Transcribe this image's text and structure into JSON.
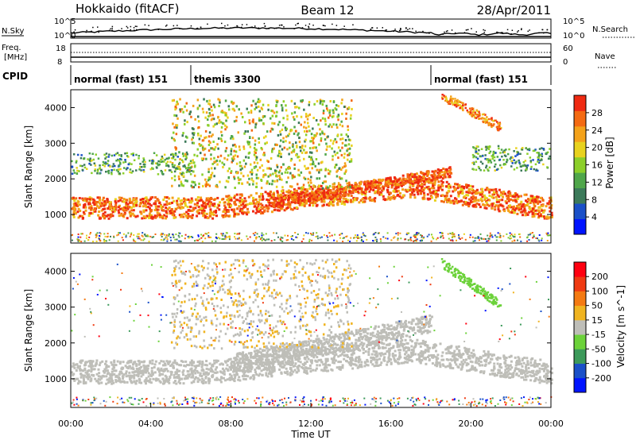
{
  "header": {
    "station": "Hokkaido (fitACF)",
    "beam": "Beam 12",
    "date": "28/Apr/2011"
  },
  "top_panel": {
    "nsky_label": "N.Sky",
    "nsky_ticks": [
      "10^5",
      "10^0"
    ],
    "nsearch_label": "N.Search",
    "nsearch_ticks": [
      "10^5",
      "10^0"
    ],
    "freq_label_1": "Freq.",
    "freq_label_2": "[MHz]",
    "freq_ticks": [
      "18",
      "8"
    ],
    "nave_label": "Nave",
    "nave_ticks": [
      "60",
      "0"
    ],
    "cpid_label": "CPID",
    "cpid_segments": [
      {
        "label": "normal (fast) 151",
        "start_h": 0,
        "end_h": 6
      },
      {
        "label": "themis 3300",
        "start_h": 6,
        "end_h": 18
      },
      {
        "label": "normal (fast) 151",
        "start_h": 18,
        "end_h": 24
      }
    ]
  },
  "chart_data": [
    {
      "type": "heatmap",
      "title": "",
      "quantity": "Power",
      "ylabel": "Slant Range [km]",
      "xlabel": "",
      "xlim": [
        0,
        24
      ],
      "ylim": [
        200,
        4500
      ],
      "yticks": [
        "1000",
        "2000",
        "3000",
        "4000"
      ],
      "colorbar": {
        "label": "Power [dB]",
        "min": 0,
        "max": 32,
        "ticks": [
          "4",
          "8",
          "12",
          "16",
          "20",
          "24",
          "28"
        ],
        "colors": [
          "#0014ff",
          "#1a50c8",
          "#3c7a5a",
          "#4fa64a",
          "#8ccf2a",
          "#e8d21e",
          "#f4a21a",
          "#f46a12",
          "#ef2a12"
        ]
      },
      "features": [
        {
          "region": "main E-region/scatter band",
          "time_h": [
            0,
            24
          ],
          "range_km": [
            800,
            1500
          ],
          "power_db": "20-30"
        },
        {
          "region": "rising F-region band",
          "time_h": [
            8,
            18
          ],
          "range_km": [
            1200,
            2200
          ],
          "power_db": "20-28"
        },
        {
          "region": "dayside scattered echoes",
          "time_h": [
            5,
            14
          ],
          "range_km": [
            1800,
            4200
          ],
          "power_db": "10-22"
        },
        {
          "region": "dusk echoes",
          "time_h": [
            18,
            22
          ],
          "range_km": [
            1000,
            2100
          ],
          "power_db": "18-30"
        },
        {
          "region": "late-evening echoes",
          "time_h": [
            19,
            21.5
          ],
          "range_km": [
            3500,
            4300
          ],
          "power_db": "16-24"
        }
      ]
    },
    {
      "type": "heatmap",
      "title": "",
      "quantity": "Velocity",
      "ylabel": "Slant Range [km]",
      "xlabel": "Time UT",
      "xlim": [
        0,
        24
      ],
      "ylim": [
        200,
        4500
      ],
      "xticks": [
        "00:00",
        "04:00",
        "08:00",
        "12:00",
        "16:00",
        "20:00",
        "00:00"
      ],
      "yticks": [
        "1000",
        "2000",
        "3000",
        "4000"
      ],
      "colorbar": {
        "label": "Velocity [m s^-1]",
        "min": -250,
        "max": 250,
        "ticks": [
          "200",
          "100",
          "50",
          "15",
          "-15",
          "-50",
          "-100",
          "-200"
        ],
        "colors": [
          "#0014ff",
          "#1a50c8",
          "#3c9a5a",
          "#6cd23a",
          "#bebeb8",
          "#f0b420",
          "#f47a12",
          "#ef3a12",
          "#ff0010"
        ]
      },
      "features": [
        {
          "region": "ground scatter band",
          "time_h": [
            0,
            24
          ],
          "range_km": [
            800,
            1500
          ],
          "velocity": "-15 to 15"
        },
        {
          "region": "rising ground scatter",
          "time_h": [
            8,
            18
          ],
          "range_km": [
            1200,
            2500
          ],
          "velocity": "-15 to 15"
        },
        {
          "region": "dayside ionospheric echoes",
          "time_h": [
            6,
            13
          ],
          "range_km": [
            1800,
            3800
          ],
          "velocity": "-50 to -15"
        },
        {
          "region": "evening echoes",
          "time_h": [
            19,
            21
          ],
          "range_km": [
            2800,
            4300
          ],
          "velocity": "15 to 50"
        }
      ]
    }
  ]
}
